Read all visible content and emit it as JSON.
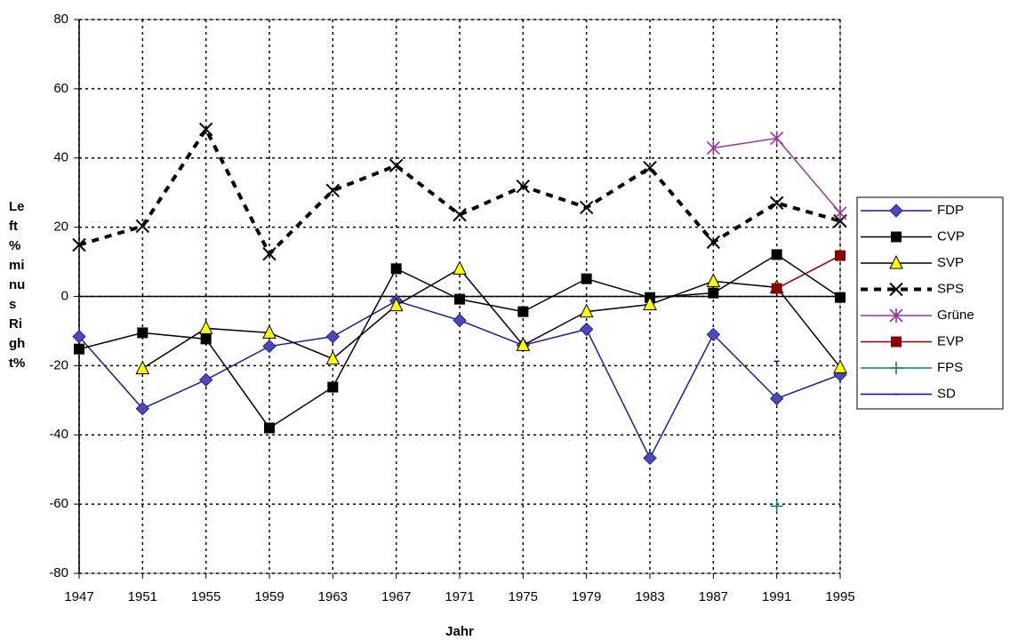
{
  "chart_data": {
    "type": "line",
    "x_label": "Jahr",
    "y_label_lines": [
      "Le",
      "ft",
      "%",
      "mi",
      "nu",
      "s",
      "Ri",
      "gh",
      "t%"
    ],
    "x": [
      1947,
      1951,
      1955,
      1959,
      1963,
      1967,
      1971,
      1975,
      1979,
      1983,
      1987,
      1991,
      1995
    ],
    "xlim": [
      1947,
      1995
    ],
    "xticks": [
      1947,
      1951,
      1955,
      1959,
      1963,
      1967,
      1971,
      1975,
      1979,
      1983,
      1987,
      1991,
      1995
    ],
    "ylim": [
      -80,
      80
    ],
    "yticks": [
      -80,
      -60,
      -40,
      -20,
      0,
      20,
      40,
      60,
      80
    ],
    "grid": true,
    "legend": "right",
    "series": [
      {
        "name": "FDP",
        "color": "#1f1f8f",
        "marker": "diamond",
        "marker_color": "#4b4bb8",
        "line_style": "solid",
        "values": [
          -11.6,
          -32.4,
          -24.1,
          -14.4,
          -11.6,
          -1.3,
          -6.9,
          -14.1,
          -9.5,
          -46.7,
          -11,
          -29.5,
          -22.6
        ]
      },
      {
        "name": "CVP",
        "color": "#000000",
        "marker": "square",
        "marker_color": "#000000",
        "line_style": "solid",
        "values": [
          -15.2,
          -10.5,
          -12.3,
          -38,
          -26.2,
          8,
          -0.8,
          -4.4,
          5.1,
          -0.3,
          1,
          12.1,
          -0.3
        ]
      },
      {
        "name": "SVP",
        "color": "#000000",
        "marker": "triangle",
        "marker_color": "#ffff00",
        "line_style": "solid",
        "values": [
          null,
          -20.8,
          -9.2,
          -10.5,
          -18,
          -2.6,
          8,
          -14.1,
          -4.4,
          -2.3,
          4.4,
          2.6,
          -20.5
        ]
      },
      {
        "name": "SPS",
        "color": "#000000",
        "marker": "x",
        "marker_color": "#000000",
        "line_style": "dashed",
        "values": [
          14.9,
          20.3,
          48.3,
          12.3,
          30.6,
          37.8,
          23.6,
          31.8,
          25.7,
          37.2,
          15.7,
          27,
          21.8
        ]
      },
      {
        "name": "Grüne",
        "color": "#993399",
        "marker": "asterisk",
        "marker_color": "#993399",
        "line_style": "solid",
        "values": [
          null,
          null,
          null,
          null,
          null,
          null,
          null,
          null,
          null,
          null,
          42.9,
          45.7,
          24.1
        ]
      },
      {
        "name": "EVP",
        "color": "#8b0000",
        "marker": "square",
        "marker_color": "#8b0000",
        "line_style": "solid",
        "values": [
          null,
          null,
          null,
          null,
          null,
          null,
          null,
          null,
          null,
          null,
          null,
          2.3,
          11.8
        ]
      },
      {
        "name": "FPS",
        "color": "#008080",
        "marker": "plus",
        "marker_color": "#008080",
        "line_style": "solid",
        "values": [
          null,
          null,
          null,
          null,
          null,
          null,
          null,
          null,
          null,
          null,
          null,
          -60.6,
          null
        ]
      },
      {
        "name": "SD",
        "color": "#0000ff",
        "marker": "dash",
        "marker_color": "#0000ff",
        "line_style": "solid",
        "values": [
          null,
          null,
          null,
          null,
          null,
          null,
          null,
          null,
          null,
          null,
          null,
          -18.7,
          null
        ]
      }
    ]
  }
}
